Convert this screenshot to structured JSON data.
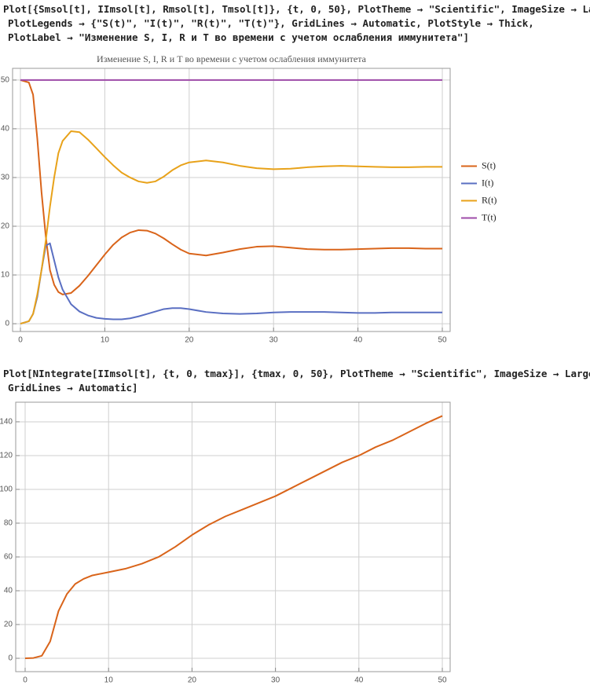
{
  "inputs": [
    {
      "lines": [
        "Plot[{Smsol[t], IImsol[t], Rmsol[t], Tmsol[t]}, {t, 0, 50}, PlotTheme → \"Scientific\", ImageSize → Large,",
        "PlotLegends → {\"S(t)\", \"I(t)\", \"R(t)\", \"T(t)\"}, GridLines → Automatic, PlotStyle → Thick,",
        "PlotLabel → \"Изменение S, I, R и T во времени с учетом ослабления иммунитета\"]"
      ]
    },
    {
      "lines": [
        "Plot[NIntegrate[IImsol[t], {t, 0, tmax}], {tmax, 0, 50}, PlotTheme → \"Scientific\", ImageSize → Large,",
        "GridLines → Automatic]"
      ]
    }
  ],
  "chart_data": [
    {
      "type": "line",
      "title": "Изменение S, I, R и T во времени с учетом ослабления иммунитета",
      "x": [
        0,
        1,
        1.5,
        2,
        2.5,
        3,
        3.5,
        4,
        4.5,
        5,
        6,
        7,
        8,
        9,
        10,
        11,
        12,
        13,
        14,
        15,
        16,
        17,
        18,
        19,
        20,
        22,
        24,
        26,
        28,
        30,
        32,
        34,
        36,
        38,
        40,
        42,
        44,
        46,
        48,
        50
      ],
      "series": [
        {
          "name": "S(t)",
          "color": "#d9641a",
          "values": [
            50,
            49.5,
            47,
            38,
            27,
            18,
            11,
            8,
            6.5,
            6,
            6.3,
            7.8,
            9.8,
            12,
            14.2,
            16.2,
            17.7,
            18.7,
            19.2,
            19.1,
            18.5,
            17.5,
            16.3,
            15.2,
            14.4,
            14,
            14.6,
            15.3,
            15.8,
            15.9,
            15.6,
            15.3,
            15.2,
            15.2,
            15.3,
            15.4,
            15.5,
            15.5,
            15.4,
            15.4
          ]
        },
        {
          "name": "I(t)",
          "color": "#5a6fc2",
          "values": [
            0,
            0.5,
            2,
            5.5,
            11,
            16,
            16.5,
            13,
            9.5,
            7,
            4,
            2.5,
            1.7,
            1.2,
            1,
            0.9,
            0.9,
            1.1,
            1.5,
            2,
            2.5,
            3,
            3.2,
            3.2,
            3,
            2.4,
            2.1,
            2,
            2.1,
            2.3,
            2.4,
            2.4,
            2.4,
            2.3,
            2.2,
            2.2,
            2.3,
            2.3,
            2.3,
            2.3
          ]
        },
        {
          "name": "R(t)",
          "color": "#e8a21a",
          "values": [
            0,
            0.5,
            2,
            6,
            11,
            17,
            24,
            30,
            35,
            37.5,
            39.5,
            39.3,
            37.8,
            36,
            34.2,
            32.5,
            31,
            30,
            29.2,
            28.9,
            29.2,
            30.2,
            31.5,
            32.5,
            33.1,
            33.5,
            33.1,
            32.4,
            31.9,
            31.7,
            31.8,
            32.1,
            32.3,
            32.4,
            32.3,
            32.2,
            32.1,
            32.1,
            32.2,
            32.2
          ]
        },
        {
          "name": "T(t)",
          "color": "#9e4ba8",
          "values": [
            50,
            50,
            50,
            50,
            50,
            50,
            50,
            50,
            50,
            50,
            50,
            50,
            50,
            50,
            50,
            50,
            50,
            50,
            50,
            50,
            50,
            50,
            50,
            50,
            50,
            50,
            50,
            50,
            50,
            50,
            50,
            50,
            50,
            50,
            50,
            50,
            50,
            50,
            50,
            50
          ]
        }
      ],
      "xlim": [
        -0.93,
        50.93
      ],
      "ylim": [
        -1.6,
        52.4
      ],
      "xticks": [
        0,
        10,
        20,
        30,
        40,
        50
      ],
      "yticks": [
        0,
        10,
        20,
        30,
        40,
        50
      ],
      "grid": true,
      "legend": "right"
    },
    {
      "type": "line",
      "x": [
        0,
        1,
        2,
        3,
        4,
        5,
        6,
        7,
        8,
        10,
        12,
        14,
        16,
        18,
        20,
        22,
        24,
        26,
        28,
        30,
        32,
        34,
        36,
        38,
        40,
        42,
        44,
        46,
        48,
        50
      ],
      "series": [
        {
          "color": "#d9641a",
          "values": [
            0,
            0.2,
            1.5,
            10,
            28,
            38,
            44,
            47,
            49,
            51,
            53,
            56,
            60,
            66,
            73,
            79,
            84,
            88,
            92,
            96,
            101,
            106,
            111,
            116,
            120,
            125,
            129,
            134,
            139,
            143.5
          ]
        }
      ],
      "xlim": [
        -1.13,
        50.94
      ],
      "ylim": [
        -7.9,
        151.6
      ],
      "xticks": [
        0,
        10,
        20,
        30,
        40,
        50
      ],
      "yticks": [
        0,
        20,
        40,
        60,
        80,
        100,
        120,
        140
      ],
      "grid": true
    }
  ]
}
